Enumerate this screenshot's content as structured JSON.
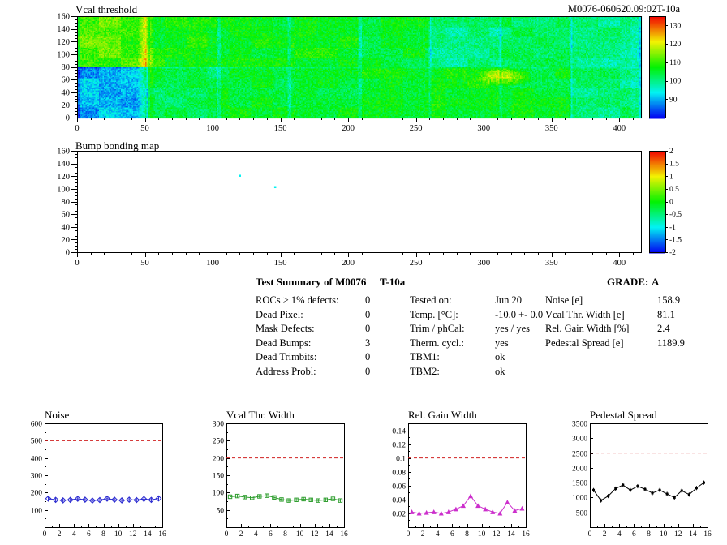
{
  "chart_data": [
    {
      "type": "heatmap",
      "title": "Vcal threshold",
      "annotation": "M0076-060620.09:02T-10a",
      "xlim": [
        0,
        416
      ],
      "ylim": [
        0,
        160
      ],
      "x_ticks": [
        0,
        50,
        100,
        150,
        200,
        250,
        300,
        350,
        400
      ],
      "y_ticks": [
        0,
        20,
        40,
        60,
        80,
        100,
        120,
        140,
        160
      ],
      "zlim": [
        80,
        135
      ],
      "colorbar_ticks": [
        90,
        100,
        110,
        120,
        130
      ],
      "tile_rows": 2,
      "tile_cols": 8,
      "tile_size_x": 52,
      "tile_base_top": [
        110,
        107,
        106,
        107,
        105,
        100,
        102,
        100
      ],
      "tile_base_bottom": [
        90,
        103,
        105,
        105,
        106,
        107,
        105,
        101
      ],
      "noise_sigma": 4,
      "seed": 1234,
      "features": [
        {
          "shape": "vband",
          "x": [
            44,
            57
          ],
          "dz": 13
        },
        {
          "shape": "blob",
          "x": [
            294,
            336
          ],
          "y": [
            50,
            80
          ],
          "dz": 12
        }
      ]
    },
    {
      "type": "heatmap",
      "title": "Bump bonding map",
      "xlim": [
        0,
        416
      ],
      "ylim": [
        0,
        160
      ],
      "x_ticks": [
        0,
        50,
        100,
        150,
        200,
        250,
        300,
        350,
        400
      ],
      "y_ticks": [
        0,
        20,
        40,
        60,
        80,
        100,
        120,
        140,
        160
      ],
      "zlim": [
        -2,
        2
      ],
      "colorbar_ticks": [
        2,
        1.5,
        1,
        0.5,
        0,
        -0.5,
        -1,
        -1.5,
        -2
      ],
      "background": "#ffffff",
      "points": [
        {
          "x": 120,
          "y": 121,
          "v": -1
        },
        {
          "x": 146,
          "y": 103,
          "v": -1
        }
      ]
    },
    {
      "type": "line",
      "title": "Noise",
      "xlim": [
        0,
        16
      ],
      "x_ticks": [
        0,
        2,
        4,
        6,
        8,
        10,
        12,
        14,
        16
      ],
      "ylim": [
        0,
        600
      ],
      "y_ticks": [
        100,
        200,
        300,
        400,
        500,
        600
      ],
      "decimals": 0,
      "ref_line": 500,
      "ref_color": "#d02020",
      "marker": "diamond",
      "color": "#2a2ad0",
      "yerr": 15,
      "values": [
        165,
        158,
        155,
        158,
        164,
        159,
        154,
        157,
        165,
        159,
        155,
        159,
        157,
        163,
        158,
        166
      ]
    },
    {
      "type": "line",
      "title": "Vcal Thr. Width",
      "xlim": [
        0,
        16
      ],
      "x_ticks": [
        0,
        2,
        4,
        6,
        8,
        10,
        12,
        14,
        16
      ],
      "ylim": [
        0,
        300
      ],
      "y_ticks": [
        50,
        100,
        150,
        200,
        250,
        300
      ],
      "decimals": 0,
      "ref_line": 200,
      "ref_color": "#d02020",
      "marker": "square",
      "color": "#2f9e2f",
      "yerr": 5,
      "values": [
        88,
        90,
        87,
        85,
        89,
        91,
        86,
        80,
        77,
        79,
        81,
        79,
        77,
        79,
        82,
        77
      ]
    },
    {
      "type": "line",
      "title": "Rel. Gain Width",
      "xlim": [
        0,
        16
      ],
      "x_ticks": [
        0,
        2,
        4,
        6,
        8,
        10,
        12,
        14,
        16
      ],
      "ylim": [
        0,
        0.15
      ],
      "y_ticks": [
        0.02,
        0.04,
        0.06,
        0.08,
        0.1,
        0.12,
        0.14
      ],
      "decimals": 2,
      "ref_line": 0.1,
      "ref_color": "#d02020",
      "marker": "triangle",
      "color": "#cc2fcc",
      "yerr": 0.002,
      "values": [
        0.022,
        0.02,
        0.021,
        0.022,
        0.02,
        0.022,
        0.026,
        0.031,
        0.045,
        0.031,
        0.026,
        0.022,
        0.02,
        0.036,
        0.024,
        0.027
      ]
    },
    {
      "type": "line",
      "title": "Pedestal Spread",
      "xlim": [
        0,
        16
      ],
      "x_ticks": [
        0,
        2,
        4,
        6,
        8,
        10,
        12,
        14,
        16
      ],
      "ylim": [
        0,
        3500
      ],
      "y_ticks": [
        500,
        1000,
        1500,
        2000,
        2500,
        3000,
        3500
      ],
      "decimals": 0,
      "ref_line": 2500,
      "ref_color": "#d02020",
      "marker": "dot",
      "color": "#000000",
      "yerr": 70,
      "values": [
        1250,
        900,
        1050,
        1300,
        1420,
        1250,
        1380,
        1280,
        1150,
        1250,
        1120,
        1000,
        1230,
        1100,
        1320,
        1500
      ]
    }
  ],
  "summary": {
    "title": "Test Summary of M0076",
    "subtitle": "T-10a",
    "grade_label": "GRADE:",
    "grade_value": "A",
    "defects": [
      {
        "label": "ROCs > 1% defects:",
        "value": "0"
      },
      {
        "label": "Dead Pixel:",
        "value": "0"
      },
      {
        "label": "Mask Defects:",
        "value": "0"
      },
      {
        "label": "Dead Bumps:",
        "value": "3"
      },
      {
        "label": "Dead Trimbits:",
        "value": "0"
      },
      {
        "label": "Address Probl:",
        "value": "0"
      }
    ],
    "conditions": [
      {
        "label": "Tested on:",
        "value": "Jun 20"
      },
      {
        "label": "Temp. [°C]:",
        "value": "-10.0 +- 0.0"
      },
      {
        "label": "Trim / phCal:",
        "value": "yes / yes"
      },
      {
        "label": "Therm. cycl.:",
        "value": "yes"
      },
      {
        "label": "TBM1:",
        "value": "ok"
      },
      {
        "label": "TBM2:",
        "value": "ok"
      }
    ],
    "results": [
      {
        "label": "Noise [e]",
        "value": "158.9"
      },
      {
        "label": "Vcal Thr. Width [e]",
        "value": "81.1"
      },
      {
        "label": "Rel. Gain Width [%]",
        "value": "2.4"
      },
      {
        "label": "Pedestal Spread [e]",
        "value": "1189.9"
      }
    ]
  }
}
